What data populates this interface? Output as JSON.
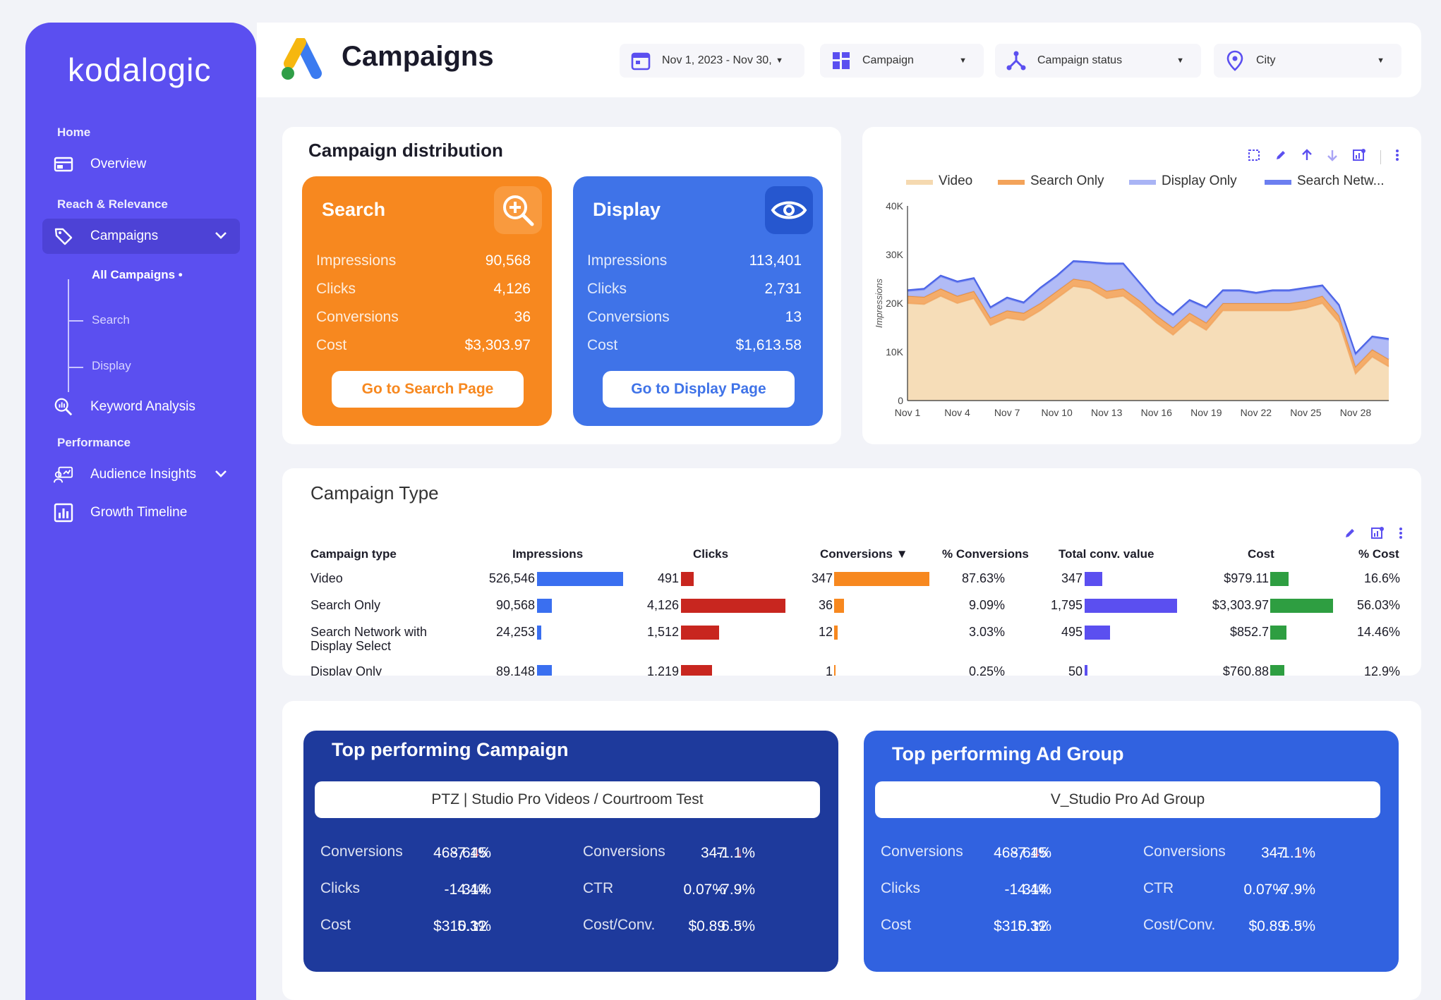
{
  "brand": "kodalogic",
  "nav": {
    "home_label": "Home",
    "overview": "Overview",
    "reach_label": "Reach & Relevance",
    "campaigns": "Campaigns",
    "sub_all": "All Campaigns •",
    "sub_search": "Search",
    "sub_display": "Display",
    "keyword": "Keyword Analysis",
    "performance_label": "Performance",
    "audience": "Audience Insights",
    "growth": "Growth Timeline"
  },
  "header": {
    "title": "Campaigns",
    "filters": {
      "date": "Nov 1, 2023 - Nov 30,",
      "campaign": "Campaign",
      "status": "Campaign status",
      "city": "City"
    }
  },
  "distribution": {
    "title": "Campaign distribution",
    "search": {
      "name": "Search",
      "rows": [
        [
          "Impressions",
          "90,568"
        ],
        [
          "Clicks",
          "4,126"
        ],
        [
          "Conversions",
          "36"
        ],
        [
          "Cost",
          "$3,303.97"
        ]
      ],
      "button": "Go to Search Page"
    },
    "display": {
      "name": "Display",
      "rows": [
        [
          "Impressions",
          "113,401"
        ],
        [
          "Clicks",
          "2,731"
        ],
        [
          "Conversions",
          "13"
        ],
        [
          "Cost",
          "$1,613.58"
        ]
      ],
      "button": "Go to Display Page"
    }
  },
  "chart_data": {
    "type": "area",
    "title": "",
    "xlabel": "",
    "ylabel": "Impressions",
    "ylim": [
      0,
      40000
    ],
    "yticks": [
      "0",
      "10K",
      "20K",
      "30K",
      "40K"
    ],
    "xticks": [
      "Nov 1",
      "Nov 4",
      "Nov 7",
      "Nov 10",
      "Nov 13",
      "Nov 16",
      "Nov 19",
      "Nov 22",
      "Nov 25",
      "Nov 28"
    ],
    "x": [
      1,
      2,
      3,
      4,
      5,
      6,
      7,
      8,
      9,
      10,
      11,
      12,
      13,
      14,
      15,
      16,
      17,
      18,
      19,
      20,
      21,
      22,
      23,
      24,
      25,
      26,
      27,
      28,
      29,
      30
    ],
    "legend_position": "top",
    "stacked": true,
    "series": [
      {
        "name": "Video",
        "color": "#f5d9b0",
        "values": [
          20000,
          19800,
          21500,
          20000,
          21000,
          15500,
          17000,
          16500,
          18500,
          21000,
          23500,
          23000,
          21000,
          21500,
          19000,
          16000,
          13500,
          16500,
          14500,
          18500,
          18500,
          18500,
          18500,
          18500,
          19000,
          20000,
          16000,
          5500,
          9000,
          7000
        ]
      },
      {
        "name": "Search Only",
        "color": "#f3a35a",
        "values": [
          1500,
          1500,
          1500,
          1500,
          1500,
          1500,
          1500,
          1500,
          1500,
          1500,
          1500,
          1500,
          1500,
          1500,
          1500,
          1500,
          1500,
          1500,
          1500,
          1500,
          1500,
          1500,
          1500,
          1500,
          1500,
          1500,
          1500,
          1500,
          1500,
          1500
        ]
      },
      {
        "name": "Display Only",
        "color": "#a9b4f5",
        "values": [
          1000,
          1500,
          2500,
          2800,
          2500,
          2000,
          2500,
          2000,
          3000,
          3000,
          3500,
          3800,
          5500,
          5000,
          3500,
          2500,
          2500,
          2500,
          3000,
          2500,
          2500,
          2000,
          2500,
          2500,
          2500,
          2000,
          2000,
          2500,
          2500,
          4000
        ]
      },
      {
        "name": "Search Netw...",
        "color": "#6c7ff0",
        "values": [
          200,
          200,
          200,
          200,
          200,
          200,
          200,
          200,
          200,
          200,
          200,
          200,
          200,
          200,
          200,
          200,
          200,
          200,
          200,
          200,
          200,
          200,
          200,
          200,
          200,
          200,
          200,
          200,
          200,
          200
        ]
      }
    ]
  },
  "campaign_type": {
    "title": "Campaign Type",
    "headers": [
      "Campaign type",
      "Impressions",
      "Clicks",
      "Conversions",
      "% Conversions",
      "Total conv. value",
      "Cost",
      "% Cost"
    ],
    "sort_indicator": "▼",
    "rows": [
      {
        "type": "Video",
        "impressions": "526,546",
        "imp_v": 526546,
        "clicks": "491",
        "clk_v": 491,
        "conversions": "347",
        "conv_v": 347,
        "pct_conv": "87.63%",
        "conv_value": "347",
        "cv_v": 347,
        "cost": "$979.11",
        "cost_v": 979.11,
        "pct_cost": "16.6%"
      },
      {
        "type": "Search Only",
        "impressions": "90,568",
        "imp_v": 90568,
        "clicks": "4,126",
        "clk_v": 4126,
        "conversions": "36",
        "conv_v": 36,
        "pct_conv": "9.09%",
        "conv_value": "1,795",
        "cv_v": 1795,
        "cost": "$3,303.97",
        "cost_v": 3303.97,
        "pct_cost": "56.03%"
      },
      {
        "type": "Search Network with Display Select",
        "impressions": "24,253",
        "imp_v": 24253,
        "clicks": "1,512",
        "clk_v": 1512,
        "conversions": "12",
        "conv_v": 12,
        "pct_conv": "3.03%",
        "conv_value": "495",
        "cv_v": 495,
        "cost": "$852.7",
        "cost_v": 852.7,
        "pct_cost": "14.46%"
      },
      {
        "type": "Display Only",
        "impressions": "89,148",
        "imp_v": 89148,
        "clicks": "1,219",
        "clk_v": 1219,
        "conversions": "1",
        "conv_v": 1,
        "pct_conv": "0.25%",
        "conv_value": "50",
        "cv_v": 50,
        "cost": "$760.88",
        "cost_v": 760.88,
        "pct_cost": "12.9%"
      }
    ]
  },
  "top_campaign": {
    "title": "Top performing Campaign",
    "name": "PTZ | Studio Pro Videos / Courtroom Test",
    "metrics": [
      [
        "Conversions",
        "468,645",
        "-7.1%",
        "↓"
      ],
      [
        "Clicks",
        "314",
        "-14.4%",
        "↓"
      ],
      [
        "Cost",
        "$310.12",
        "5.3%",
        "↑"
      ],
      [
        "Conversions",
        "347",
        "-1.1%",
        "↓"
      ],
      [
        "CTR",
        "0.07%",
        "-7.9%",
        "↓"
      ],
      [
        "Cost/Conv.",
        "$0.89",
        "6.5%",
        "↑"
      ]
    ]
  },
  "top_adgroup": {
    "title": "Top performing Ad Group",
    "name": "V_Studio Pro Ad Group",
    "metrics": [
      [
        "Conversions",
        "468,645",
        "-7.1%",
        "↓"
      ],
      [
        "Clicks",
        "314",
        "-14.4%",
        "↓"
      ],
      [
        "Cost",
        "$310.12",
        "5.3%",
        "↑"
      ],
      [
        "Conversions",
        "347",
        "-1.1%",
        "↓"
      ],
      [
        "CTR",
        "0.07%",
        "-7.9%",
        "↓"
      ],
      [
        "Cost/Conv.",
        "$0.89",
        "6.5%",
        "↑"
      ]
    ]
  },
  "colors": {
    "sidebar": "#5b4ff0",
    "search_card": "#f7881f",
    "display_card": "#3f73e8",
    "bar_impressions": "#3a6ff0",
    "bar_clicks": "#c8261f",
    "bar_conversions": "#f7881f",
    "bar_conv_value": "#5b4ff0",
    "bar_cost": "#2e9e41",
    "top_campaign_bg": "#1e3a9c",
    "top_adgroup_bg": "#3162e0",
    "down_arrow_red": "#ff5a5a"
  }
}
